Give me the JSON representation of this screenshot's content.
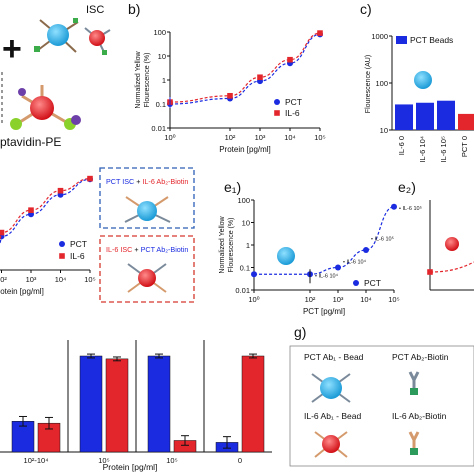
{
  "colors": {
    "blue": "#1a2be0",
    "red": "#e3262c",
    "cyan": "#2fb2e6",
    "dash_blue": "#2c5fb5",
    "dash_red": "#d4382c"
  },
  "panels": {
    "a": {
      "label_isc": "ISC",
      "plus": "+",
      "streptavidin": "ptavidin-PE"
    },
    "b": {
      "letter": "b)"
    },
    "c": {
      "letter": "c)",
      "legend": "PCT Beads",
      "ylabel": "Flourescence (AU)"
    },
    "d_box": {
      "top_title_a": "PCT ISC",
      "top_title_b": "+",
      "top_title_c": "IL-6 Ab₂-Biotin",
      "bottom_title_a": "IL-6 ISC",
      "bottom_title_b": "+",
      "bottom_title_c": "PCT Ab₂-Biotin"
    },
    "e1": {
      "letter": "e₁)"
    },
    "e2": {
      "letter": "e₂)"
    },
    "f": {},
    "g": {
      "letter": "g)",
      "pct_bead": "PCT Ab₁ - Bead",
      "pct_biotin": "PCT Ab₂-Biotin",
      "il6_bead": "IL-6 Ab₁ - Bead",
      "il6_biotin": "IL-6 Ab₂-Biotin"
    }
  },
  "chart_data": [
    {
      "panel": "b",
      "type": "line",
      "xlabel": "Protein [pg/ml]",
      "ylabel": "Normalized Yellow\nFlourescence (%)",
      "xscale": "log",
      "yscale": "log",
      "xlim": [
        1,
        100000
      ],
      "ylim": [
        0.01,
        100
      ],
      "xticks": [
        "10⁰",
        "10²",
        "10³",
        "10⁴",
        "10⁵"
      ],
      "xtick_values": [
        1,
        100,
        1000,
        10000,
        100000
      ],
      "yticks": [
        "0.01",
        "0.1",
        "1",
        "10",
        "100"
      ],
      "ytick_values": [
        0.01,
        0.1,
        1,
        10,
        100
      ],
      "legend_position": "right",
      "series": [
        {
          "name": "PCT",
          "color": "#1a2be0",
          "marker": "circle",
          "x": [
            1,
            100,
            1000,
            10000,
            100000
          ],
          "y": [
            0.1,
            0.17,
            0.9,
            5,
            80
          ]
        },
        {
          "name": "IL-6",
          "color": "#e3262c",
          "marker": "square",
          "x": [
            1,
            100,
            1000,
            10000,
            100000
          ],
          "y": [
            0.12,
            0.22,
            1.3,
            7,
            90
          ]
        }
      ]
    },
    {
      "panel": "c",
      "type": "bar",
      "ylabel": "Flourescence (AU)",
      "yscale": "log",
      "ylim": [
        10,
        1000
      ],
      "yticks": [
        "10",
        "100",
        "1000"
      ],
      "ytick_values": [
        10,
        100,
        1000
      ],
      "categories": [
        "IL-6 0",
        "IL-6 10⁴",
        "IL-6 10⁵",
        "PCT 0"
      ],
      "series": [
        {
          "name": "PCT Beads",
          "color": "#1a2be0",
          "values": [
            35,
            38,
            42,
            null
          ]
        },
        {
          "name": "",
          "color": "#e3262c",
          "values": [
            null,
            null,
            null,
            22
          ]
        }
      ]
    },
    {
      "panel": "d",
      "type": "line",
      "xlabel": "Protein [pg/ml]",
      "xscale": "log",
      "yscale": "log",
      "xticks": [
        "10²",
        "10³",
        "10⁴",
        "10⁵"
      ],
      "xtick_values": [
        100,
        1000,
        10000,
        100000
      ],
      "legend_position": "bottom-right",
      "series": [
        {
          "name": "PCT",
          "color": "#1a2be0",
          "marker": "circle",
          "x": [
            100,
            1000,
            10000,
            100000
          ],
          "y": [
            0.8,
            5,
            25,
            90
          ]
        },
        {
          "name": "IL-6",
          "color": "#e3262c",
          "marker": "square",
          "x": [
            100,
            1000,
            10000,
            100000
          ],
          "y": [
            1.1,
            7,
            35,
            95
          ]
        }
      ]
    },
    {
      "panel": "e1",
      "type": "scatter",
      "xlabel": "PCT [pg/ml]",
      "ylabel": "Normalized Yellow\nFlourescence (%)",
      "xscale": "log",
      "yscale": "log",
      "xlim": [
        1,
        100000
      ],
      "ylim": [
        0.01,
        100
      ],
      "xticks": [
        "10⁰",
        "10²",
        "10³",
        "10⁴",
        "10⁵"
      ],
      "xtick_values": [
        1,
        100,
        1000,
        10000,
        100000
      ],
      "yticks": [
        "0.01",
        "0.1",
        "1",
        "10",
        "100"
      ],
      "ytick_values": [
        0.01,
        0.1,
        1,
        10,
        100
      ],
      "legend_position": "bottom-right",
      "series": [
        {
          "name": "PCT",
          "color": "#1a2be0",
          "marker": "circle",
          "x": [
            1,
            100,
            1000,
            10000,
            100000
          ],
          "y": [
            0.05,
            0.05,
            0.1,
            0.6,
            50
          ]
        }
      ],
      "annotations": [
        {
          "text": "IL-6 10⁵",
          "x": 100000,
          "y": 50
        },
        {
          "text": "IL-6 10⁵",
          "x": 10000,
          "y": 2.2
        },
        {
          "text": "IL-6 10⁴",
          "x": 1000,
          "y": 0.2
        },
        {
          "text": "IL-6 10⁴",
          "x": 100,
          "y": 0.05
        }
      ]
    },
    {
      "panel": "e2",
      "type": "scatter",
      "series": [
        {
          "name": "",
          "color": "#e3262c",
          "marker": "square",
          "x": [
            1
          ],
          "y": [
            0.05
          ]
        }
      ]
    },
    {
      "panel": "f",
      "type": "bar",
      "xlabel": "Protein [pg/ml]",
      "groups": [
        {
          "label": "10²-10⁴",
          "blue": 32,
          "blue_err": 5,
          "red": 30,
          "red_err": 6
        },
        {
          "label": "10⁵",
          "blue": 100,
          "blue_err": 2,
          "red": 97,
          "red_err": 2
        },
        {
          "label": "10⁵",
          "blue": 100,
          "blue_err": 2,
          "red": 12,
          "red_err": 5
        },
        {
          "label": "0",
          "blue": 10,
          "blue_err": 6,
          "red": 100,
          "red_err": 2
        }
      ],
      "series": [
        {
          "name": "",
          "color": "#1a2be0"
        },
        {
          "name": "",
          "color": "#e3262c"
        }
      ]
    }
  ]
}
